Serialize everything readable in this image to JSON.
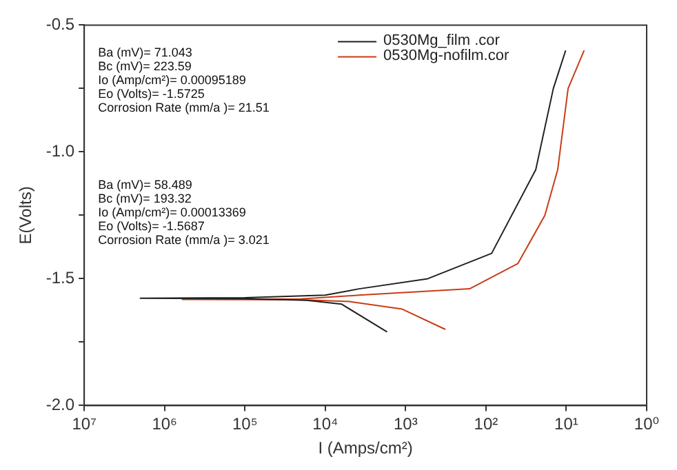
{
  "chart_data": {
    "type": "line",
    "xlabel": "I (Amps/cm²)",
    "ylabel": "E(Volts)",
    "log": "x",
    "grid": false,
    "legend": "top",
    "marker": "none",
    "line_style": "solid",
    "xlim": [
      10000000.0,
      1
    ],
    "xticks": [
      {
        "value": 10000000.0,
        "label": "10⁷"
      },
      {
        "value": 1000000.0,
        "label": "10⁶"
      },
      {
        "value": 100000.0,
        "label": "10⁵"
      },
      {
        "value": 10000.0,
        "label": "10⁴"
      },
      {
        "value": 1000.0,
        "label": "10³"
      },
      {
        "value": 100,
        "label": "10²"
      },
      {
        "value": 10,
        "label": "10¹"
      },
      {
        "value": 1,
        "label": "10⁰"
      }
    ],
    "ylim": [
      -2,
      -0.5
    ],
    "yticks": [
      {
        "value": -2,
        "label": "-2.0"
      },
      {
        "value": -1.75,
        "label": null
      },
      {
        "value": -1.5,
        "label": "-1.5"
      },
      {
        "value": -1.25,
        "label": null
      },
      {
        "value": -1,
        "label": "-1.0"
      },
      {
        "value": -0.75,
        "label": null
      },
      {
        "value": -0.5,
        "label": "-0.5"
      }
    ],
    "series": [
      {
        "name": "0530Mg_film .cor",
        "color": "#202020",
        "x": [
          1700,
          6300,
          17000,
          100000,
          2000000,
          100000,
          10000,
          3800,
          530,
          85,
          24,
          14.5,
          10.2
        ],
        "values": [
          -1.71,
          -1.6,
          -1.585,
          -1.579,
          -1.577,
          -1.575,
          -1.565,
          -1.54,
          -1.5,
          -1.4,
          -1.07,
          -0.75,
          -0.6
        ]
      },
      {
        "name": "0530Mg-nofilm.cor",
        "color": "#c83c14",
        "x": [
          320,
          1100,
          5000,
          20000,
          600000,
          20000,
          3800,
          160,
          40,
          18.5,
          12.8,
          9.5,
          6
        ],
        "values": [
          -1.7,
          -1.62,
          -1.59,
          -1.583,
          -1.582,
          -1.58,
          -1.565,
          -1.54,
          -1.44,
          -1.25,
          -1.07,
          -0.75,
          -0.6
        ]
      }
    ],
    "annotations": [
      "Ba (mV)= 71.043",
      "Bc (mV)= 223.59",
      "Io (Amp/cm²)= 0.00095189",
      "Eo (Volts)= -1.5725",
      "Corrosion Rate (mm/a )= 21.51",
      "Ba (mV)= 58.489",
      "Bc (mV)= 193.32",
      "Io (Amp/cm²)= 0.00013369",
      "Eo (Volts)= -1.5687",
      "Corrosion Rate (mm/a )= 3.021"
    ]
  }
}
